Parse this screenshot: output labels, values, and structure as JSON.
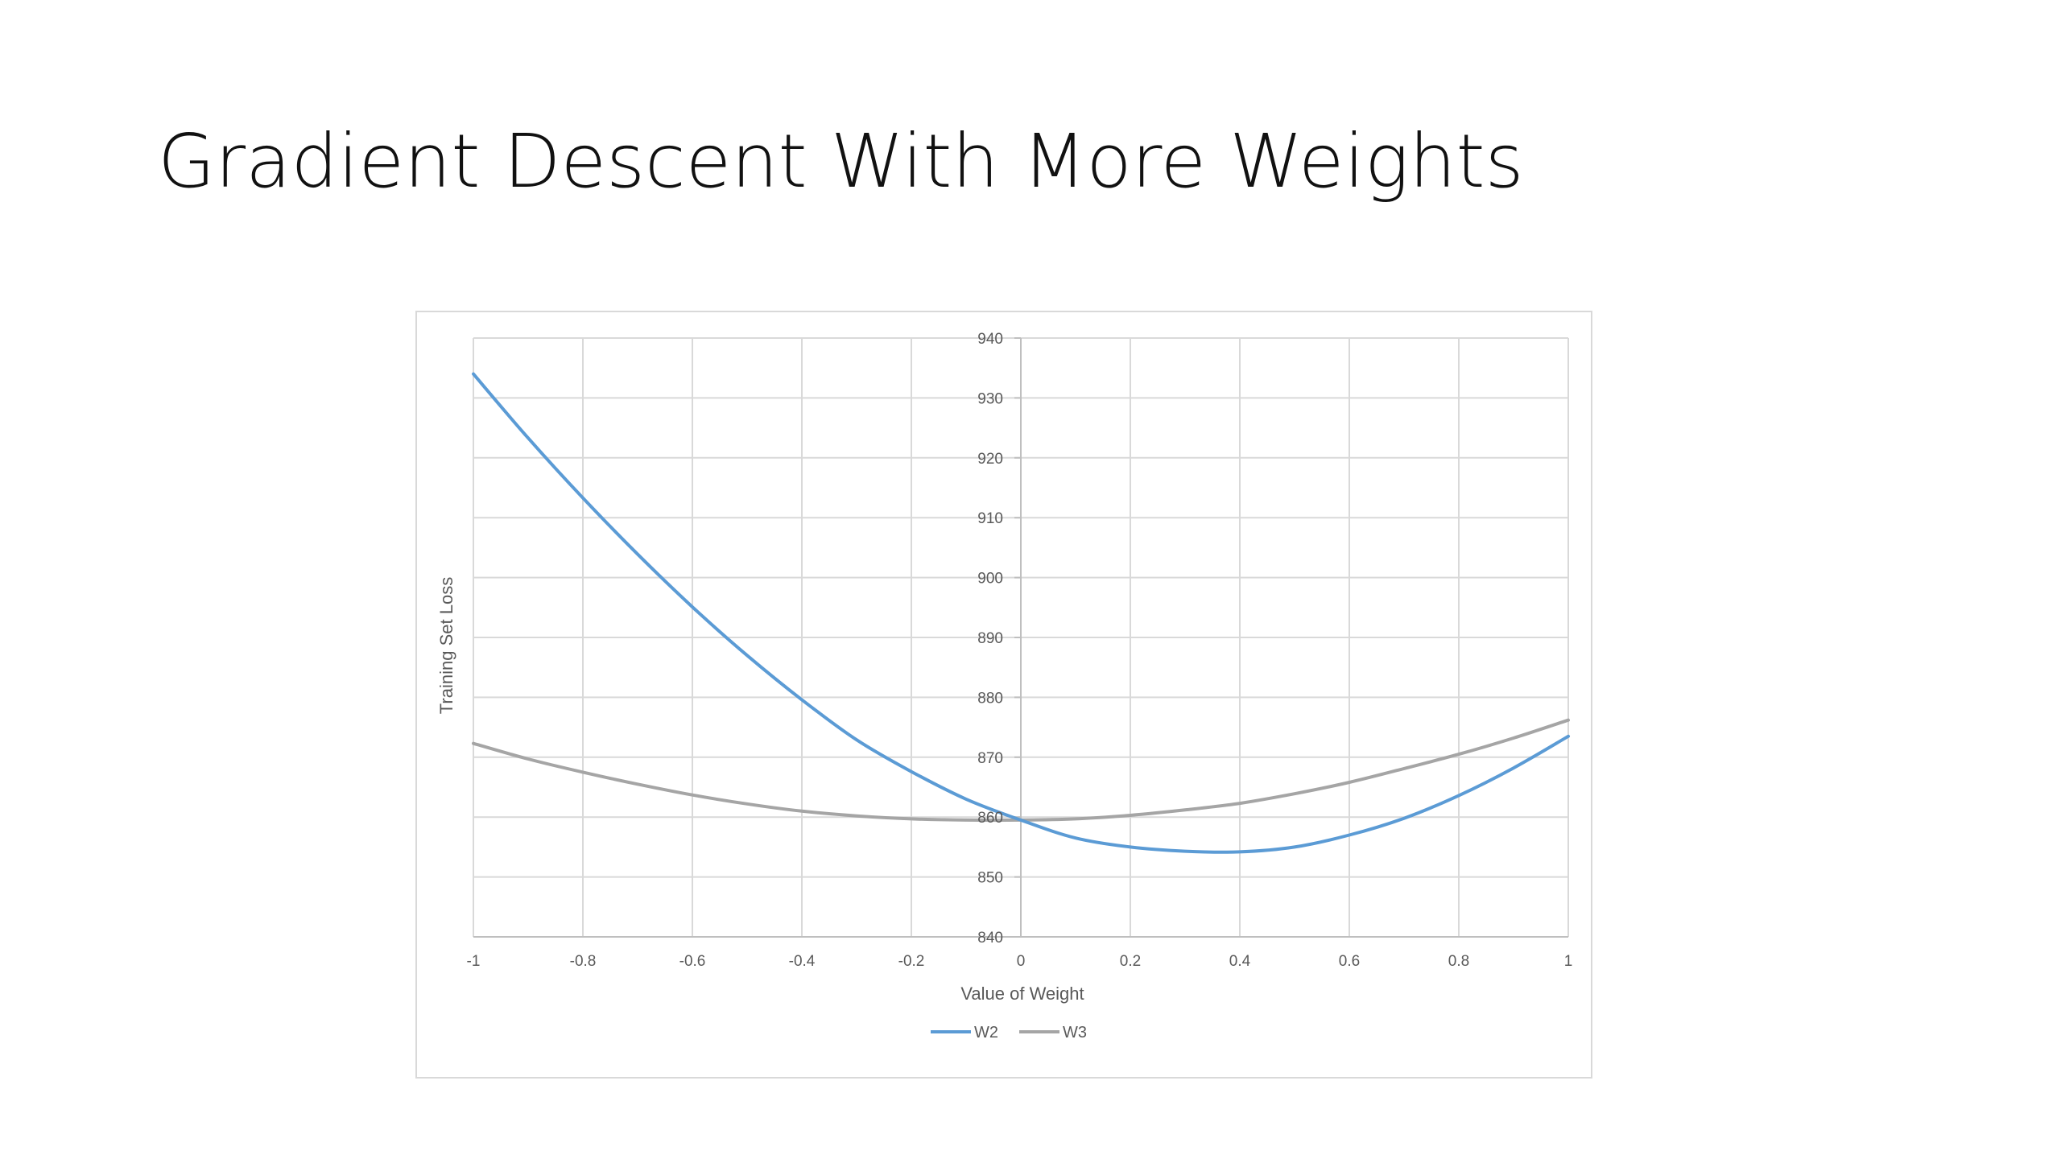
{
  "slide": {
    "title": "Gradient Descent With More Weights"
  },
  "chart_data": {
    "type": "line",
    "title": "",
    "xlabel": "Value of Weight",
    "ylabel": "Training Set  Loss",
    "xlim": [
      -1,
      1
    ],
    "ylim": [
      840,
      940
    ],
    "x_ticks": [
      -1,
      -0.8,
      -0.6,
      -0.4,
      -0.2,
      0,
      0.2,
      0.4,
      0.6,
      0.8,
      1
    ],
    "x_tick_labels": [
      "-1",
      "-0.8",
      "-0.6",
      "-0.4",
      "-0.2",
      "0",
      "0.2",
      "0.4",
      "0.6",
      "0.8",
      "1"
    ],
    "y_ticks": [
      840,
      850,
      860,
      870,
      880,
      890,
      900,
      910,
      920,
      930,
      940
    ],
    "y_tick_labels": [
      "840",
      "850",
      "860",
      "870",
      "880",
      "890",
      "900",
      "910",
      "920",
      "930",
      "940"
    ],
    "grid": true,
    "legend_position": "bottom",
    "x": [
      -1,
      -0.9,
      -0.8,
      -0.7,
      -0.6,
      -0.5,
      -0.4,
      -0.3,
      -0.2,
      -0.1,
      0,
      0.1,
      0.2,
      0.3,
      0.4,
      0.5,
      0.6,
      0.7,
      0.8,
      0.9,
      1
    ],
    "series": [
      {
        "name": "W2",
        "color": "#5b9bd5",
        "values": [
          934,
          923.3,
          913.3,
          903.9,
          895.1,
          887.0,
          879.6,
          872.9,
          867.6,
          863.0,
          859.5,
          856.5,
          855.0,
          854.3,
          854.2,
          855.0,
          857.0,
          859.8,
          863.6,
          868.2,
          873.5
        ]
      },
      {
        "name": "W3",
        "color": "#a5a5a5",
        "values": [
          872.3,
          869.7,
          867.5,
          865.5,
          863.7,
          862.2,
          861.0,
          860.2,
          859.7,
          859.5,
          859.5,
          859.7,
          860.3,
          861.2,
          862.3,
          863.9,
          865.8,
          868.1,
          870.5,
          873.2,
          876.2
        ]
      }
    ]
  }
}
